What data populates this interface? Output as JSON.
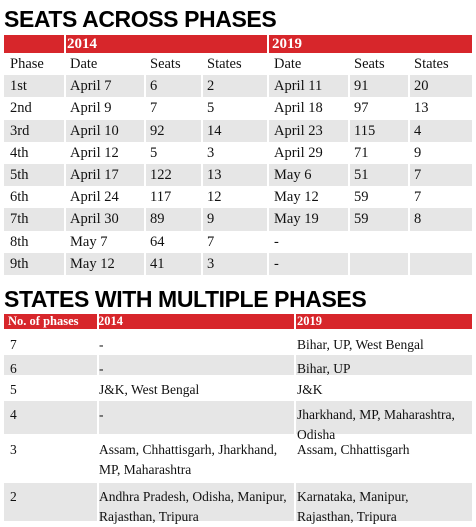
{
  "section1": {
    "title": "SEATS ACROSS PHASES",
    "year_a": "2014",
    "year_b": "2019",
    "columns": [
      "Phase",
      "Date",
      "Seats",
      "States",
      "Date",
      "Seats",
      "States"
    ],
    "rows": [
      [
        "1st",
        "April 7",
        "6",
        "2",
        "April 11",
        "91",
        "20"
      ],
      [
        "2nd",
        "April 9",
        "7",
        "5",
        "April 18",
        "97",
        "13"
      ],
      [
        "3rd",
        "April 10",
        "92",
        "14",
        "April 23",
        "115",
        "4"
      ],
      [
        "4th",
        "April 12",
        "5",
        "3",
        "April 29",
        "71",
        "9"
      ],
      [
        "5th",
        "April 17",
        "122",
        "13",
        "May 6",
        "51",
        "7"
      ],
      [
        "6th",
        "April 24",
        "117",
        "12",
        "May 12",
        "59",
        "7"
      ],
      [
        "7th",
        "April 30",
        "89",
        "9",
        "May 19",
        "59",
        "8"
      ],
      [
        "8th",
        "May 7",
        "64",
        "7",
        "-",
        "",
        ""
      ],
      [
        "9th",
        "May 12",
        "41",
        "3",
        "-",
        "",
        ""
      ]
    ]
  },
  "section2": {
    "title": "STATES WITH MULTIPLE PHASES",
    "columns": [
      "No. of phases",
      "2014",
      "2019"
    ],
    "rows": [
      [
        "7",
        "-",
        "Bihar, UP, West Bengal"
      ],
      [
        "6",
        "-",
        "Bihar, UP"
      ],
      [
        "5",
        "J&K, West Bengal",
        "J&K"
      ],
      [
        "4",
        "-",
        "Jharkhand, MP, Maharashtra, Odisha"
      ],
      [
        "3",
        "Assam, Chhattisgarh, Jharkhand, MP, Maharashtra",
        "Assam, Chhattisgarh"
      ],
      [
        "2",
        "Andhra Pradesh, Odisha, Manipur, Rajasthan, Tripura",
        "Karnataka, Manipur, Rajasthan, Tripura"
      ]
    ]
  },
  "colors": {
    "header_band": "#d7262b",
    "row_shade": "#e6e6e6"
  }
}
